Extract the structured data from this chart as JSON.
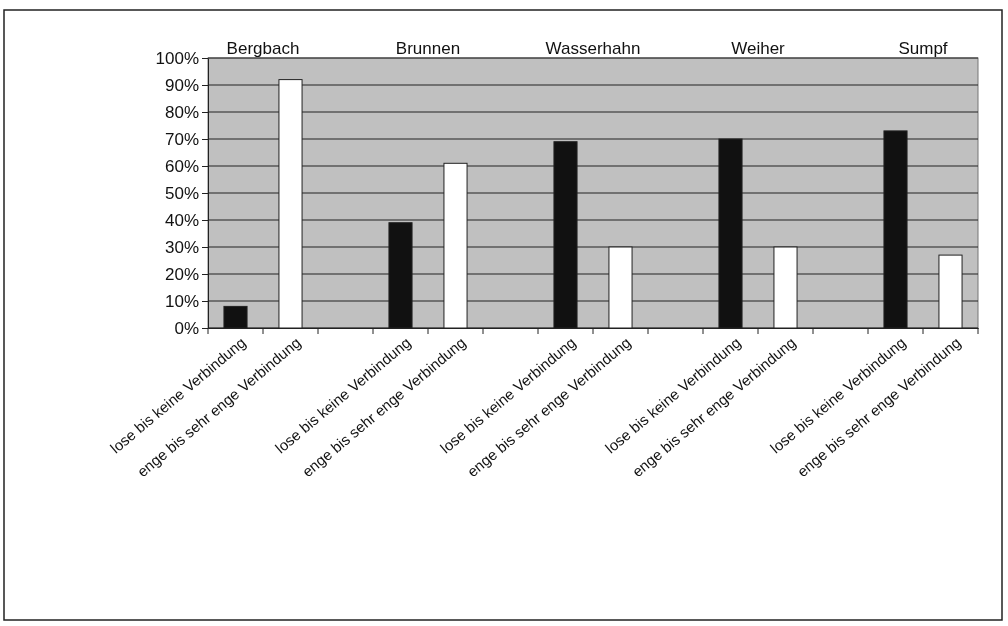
{
  "chart_data": {
    "type": "bar",
    "categories": [
      "lose bis keine Verbindung",
      "enge bis sehr enge Verbindung",
      null,
      "lose bis keine Verbindung",
      "enge bis sehr enge Verbindung",
      null,
      "lose bis keine Verbindung",
      "enge bis sehr enge Verbindung",
      null,
      "lose bis keine Verbindung",
      "enge bis sehr enge Verbindung",
      null,
      "lose bis keine Verbindung",
      "enge bis sehr enge Verbindung"
    ],
    "series": [
      {
        "color": "#111111",
        "values": [
          8,
          null,
          null,
          39,
          null,
          null,
          69,
          null,
          null,
          70,
          null,
          null,
          73,
          null
        ]
      },
      {
        "color": "#ffffff",
        "values": [
          null,
          92,
          null,
          null,
          61,
          null,
          null,
          30,
          null,
          null,
          30,
          null,
          null,
          27
        ]
      }
    ],
    "ylim": [
      0,
      100
    ],
    "yticks": [
      {
        "value": 0,
        "label": "0%"
      },
      {
        "value": 10,
        "label": "10%"
      },
      {
        "value": 20,
        "label": "20%"
      },
      {
        "value": 30,
        "label": "30%"
      },
      {
        "value": 40,
        "label": "40%"
      },
      {
        "value": 50,
        "label": "50%"
      },
      {
        "value": 60,
        "label": "60%"
      },
      {
        "value": 70,
        "label": "70%"
      },
      {
        "value": 80,
        "label": "80%"
      },
      {
        "value": 90,
        "label": "90%"
      },
      {
        "value": 100,
        "label": "100%"
      }
    ],
    "grid": "y",
    "annotations": [
      "Bergbach",
      "Brunnen",
      "Wasserhahn",
      "Weiher",
      "Sumpf"
    ]
  }
}
